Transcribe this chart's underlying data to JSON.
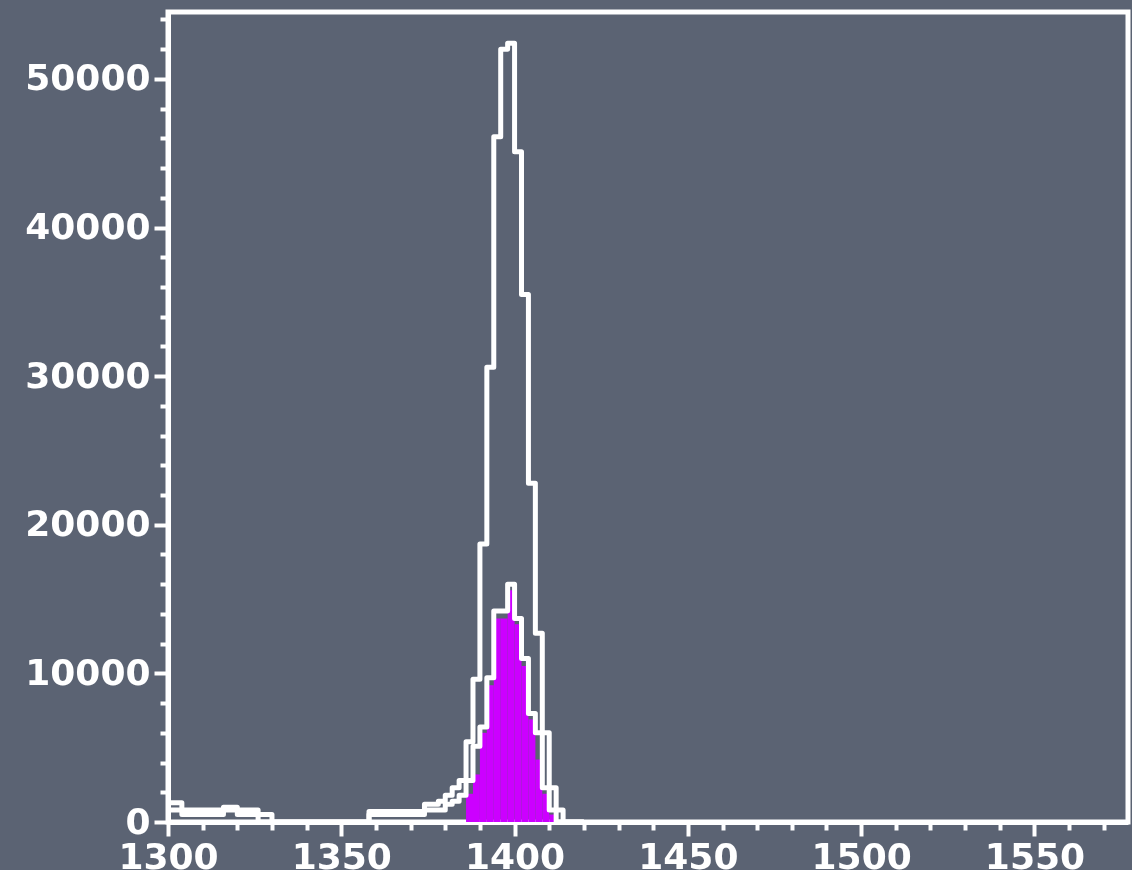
{
  "chart_data": {
    "type": "histogram",
    "bins": [
      1300,
      1302,
      1304,
      1306,
      1308,
      1310,
      1312,
      1314,
      1316,
      1318,
      1320,
      1322,
      1324,
      1326,
      1328,
      1330,
      1332,
      1334,
      1336,
      1338,
      1340,
      1342,
      1344,
      1346,
      1348,
      1350,
      1352,
      1354,
      1356,
      1358,
      1360,
      1362,
      1364,
      1366,
      1368,
      1370,
      1372,
      1374,
      1376,
      1378,
      1380,
      1382,
      1384,
      1386,
      1388,
      1390,
      1392,
      1394,
      1396,
      1398,
      1400,
      1402,
      1404,
      1406,
      1408,
      1410,
      1412,
      1414,
      1416,
      1418,
      1420
    ],
    "series": [
      {
        "color": "#cc00ff",
        "values": [
          0,
          0,
          0,
          0,
          0,
          0,
          0,
          0,
          0,
          0,
          0,
          0,
          0,
          0,
          0,
          0,
          0,
          0,
          0,
          0,
          0,
          0,
          0,
          0,
          0,
          0,
          0,
          0,
          0,
          0,
          0,
          0,
          0,
          0,
          0,
          0,
          0,
          0,
          0,
          0,
          0,
          0,
          0,
          1900,
          3200,
          6000,
          9200,
          13700,
          13700,
          15600,
          13300,
          10500,
          6900,
          4200,
          1900,
          500,
          0,
          0,
          0,
          0
        ]
      },
      {
        "type": "step",
        "color": "#ffffff",
        "x": [
          1300,
          1302,
          1304,
          1306,
          1308,
          1310,
          1312,
          1314,
          1316,
          1318,
          1320,
          1322,
          1324,
          1326,
          1328,
          1330,
          1332,
          1334,
          1336,
          1338,
          1340,
          1342,
          1344,
          1346,
          1348,
          1350,
          1352,
          1354,
          1356,
          1358,
          1360,
          1362,
          1364,
          1366,
          1368,
          1370,
          1372,
          1374,
          1376,
          1378,
          1380,
          1382,
          1384,
          1386,
          1388,
          1390,
          1392,
          1394,
          1396,
          1398,
          1400,
          1402,
          1404,
          1406,
          1408,
          1410,
          1412,
          1414,
          1416,
          1418,
          1420
        ],
        "values": [
          800,
          800,
          500,
          500,
          500,
          500,
          500,
          500,
          800,
          800,
          500,
          500,
          500,
          0,
          0,
          0,
          0,
          0,
          0,
          0,
          0,
          0,
          0,
          0,
          0,
          0,
          0,
          0,
          0,
          500,
          500,
          500,
          500,
          500,
          500,
          500,
          500,
          800,
          800,
          800,
          1200,
          1400,
          1800,
          2800,
          5100,
          6400,
          9700,
          14200,
          14200,
          16000,
          13700,
          11000,
          7300,
          6000,
          2300,
          800,
          0,
          0,
          0,
          0,
          0
        ]
      },
      {
        "type": "step",
        "color": "#ffffff",
        "x": [
          1300,
          1302,
          1304,
          1306,
          1308,
          1310,
          1312,
          1314,
          1316,
          1318,
          1320,
          1322,
          1324,
          1326,
          1328,
          1330,
          1332,
          1334,
          1336,
          1338,
          1340,
          1342,
          1344,
          1346,
          1348,
          1350,
          1352,
          1354,
          1356,
          1358,
          1360,
          1362,
          1364,
          1366,
          1368,
          1370,
          1372,
          1374,
          1376,
          1378,
          1380,
          1382,
          1384,
          1386,
          1388,
          1390,
          1392,
          1394,
          1396,
          1398,
          1400,
          1402,
          1404,
          1406,
          1408,
          1410,
          1412,
          1414,
          1416,
          1418,
          1420
        ],
        "values": [
          1300,
          1300,
          800,
          800,
          800,
          800,
          800,
          800,
          1000,
          1000,
          800,
          800,
          800,
          500,
          500,
          0,
          0,
          0,
          0,
          0,
          0,
          0,
          0,
          0,
          0,
          0,
          0,
          0,
          0,
          700,
          700,
          700,
          700,
          700,
          700,
          700,
          700,
          1200,
          1200,
          1400,
          1800,
          2300,
          2800,
          5400,
          9600,
          18700,
          30600,
          46100,
          52000,
          52400,
          45100,
          35500,
          22800,
          12700,
          6000,
          2300,
          800,
          0,
          0,
          0,
          0
        ]
      }
    ],
    "xlim": [
      1300,
      1577
    ],
    "xticks": [
      1300,
      {
        "value": 1310,
        "label": null
      },
      {
        "value": 1320,
        "label": null
      },
      {
        "value": 1330,
        "label": null
      },
      {
        "value": 1340,
        "label": null
      },
      1350,
      {
        "value": 1360,
        "label": null
      },
      {
        "value": 1370,
        "label": null
      },
      {
        "value": 1380,
        "label": null
      },
      {
        "value": 1390,
        "label": null
      },
      1400,
      {
        "value": 1410,
        "label": null
      },
      {
        "value": 1420,
        "label": null
      },
      {
        "value": 1430,
        "label": null
      },
      {
        "value": 1440,
        "label": null
      },
      1450,
      {
        "value": 1460,
        "label": null
      },
      {
        "value": 1470,
        "label": null
      },
      {
        "value": 1480,
        "label": null
      },
      {
        "value": 1490,
        "label": null
      },
      1500,
      {
        "value": 1510,
        "label": null
      },
      {
        "value": 1520,
        "label": null
      },
      {
        "value": 1530,
        "label": null
      },
      {
        "value": 1540,
        "label": null
      },
      1550,
      {
        "value": 1560,
        "label": null
      },
      {
        "value": 1570,
        "label": null
      }
    ],
    "ylim": [
      0,
      54500
    ],
    "yticks": [
      0,
      {
        "value": 2000,
        "label": null
      },
      {
        "value": 4000,
        "label": null
      },
      {
        "value": 6000,
        "label": null
      },
      {
        "value": 8000,
        "label": null
      },
      10000,
      {
        "value": 12000,
        "label": null
      },
      {
        "value": 14000,
        "label": null
      },
      {
        "value": 16000,
        "label": null
      },
      {
        "value": 18000,
        "label": null
      },
      20000,
      {
        "value": 22000,
        "label": null
      },
      {
        "value": 24000,
        "label": null
      },
      {
        "value": 26000,
        "label": null
      },
      {
        "value": 28000,
        "label": null
      },
      30000,
      {
        "value": 32000,
        "label": null
      },
      {
        "value": 34000,
        "label": null
      },
      {
        "value": 36000,
        "label": null
      },
      {
        "value": 38000,
        "label": null
      },
      40000,
      {
        "value": 42000,
        "label": null
      },
      {
        "value": 44000,
        "label": null
      },
      {
        "value": 46000,
        "label": null
      },
      {
        "value": 48000,
        "label": null
      },
      50000,
      {
        "value": 52000,
        "label": null
      },
      {
        "value": 54000,
        "label": null
      }
    ]
  }
}
